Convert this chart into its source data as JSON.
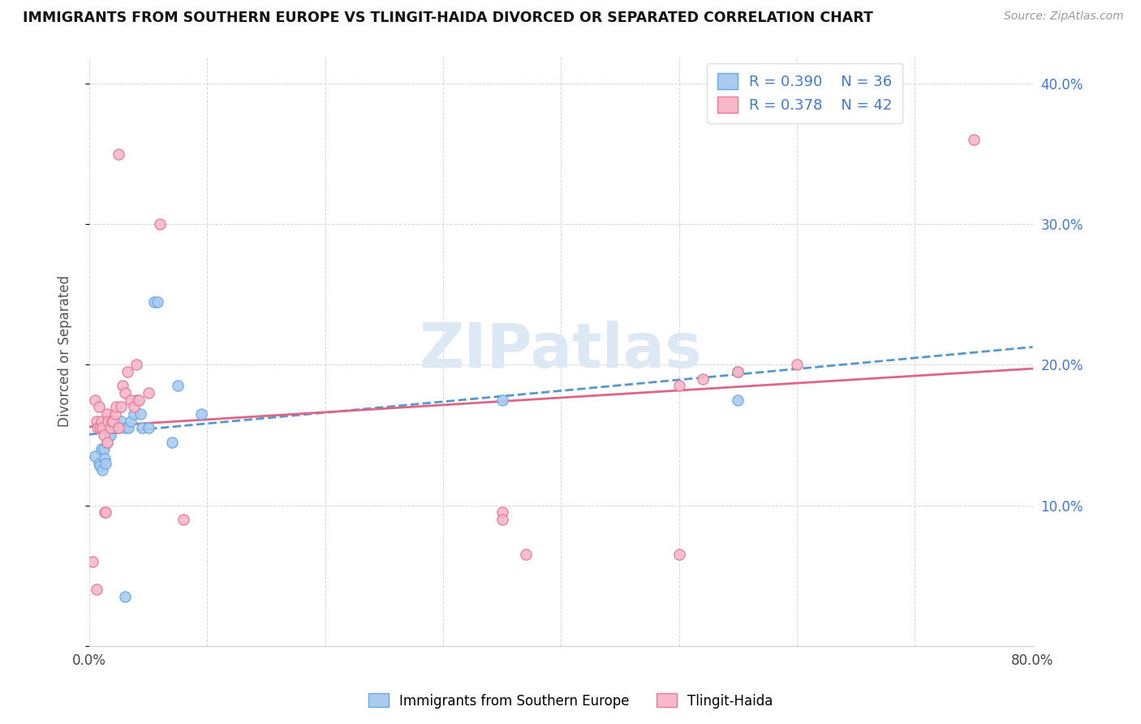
{
  "title": "IMMIGRANTS FROM SOUTHERN EUROPE VS TLINGIT-HAIDA DIVORCED OR SEPARATED CORRELATION CHART",
  "source": "Source: ZipAtlas.com",
  "ylabel": "Divorced or Separated",
  "xlim": [
    0.0,
    0.8
  ],
  "ylim": [
    0.0,
    0.42
  ],
  "xtick_positions": [
    0.0,
    0.1,
    0.2,
    0.3,
    0.4,
    0.5,
    0.6,
    0.7,
    0.8
  ],
  "xticklabels": [
    "0.0%",
    "",
    "",
    "",
    "",
    "",
    "",
    "",
    "80.0%"
  ],
  "ytick_positions": [
    0.0,
    0.1,
    0.2,
    0.3,
    0.4
  ],
  "yticklabels_right": [
    "",
    "10.0%",
    "20.0%",
    "30.0%",
    "40.0%"
  ],
  "blue_R": 0.39,
  "blue_N": 36,
  "pink_R": 0.378,
  "pink_N": 42,
  "blue_fill_color": "#aacbf0",
  "blue_edge_color": "#6aaae0",
  "pink_fill_color": "#f7b8ca",
  "pink_edge_color": "#e87899",
  "blue_line_color": "#5599cc",
  "pink_line_color": "#dd6688",
  "blue_scatter": [
    [
      0.005,
      0.135
    ],
    [
      0.008,
      0.13
    ],
    [
      0.009,
      0.128
    ],
    [
      0.01,
      0.14
    ],
    [
      0.01,
      0.155
    ],
    [
      0.011,
      0.125
    ],
    [
      0.012,
      0.14
    ],
    [
      0.013,
      0.133
    ],
    [
      0.014,
      0.13
    ],
    [
      0.015,
      0.145
    ],
    [
      0.016,
      0.155
    ],
    [
      0.017,
      0.15
    ],
    [
      0.018,
      0.15
    ],
    [
      0.019,
      0.155
    ],
    [
      0.02,
      0.155
    ],
    [
      0.022,
      0.16
    ],
    [
      0.023,
      0.155
    ],
    [
      0.025,
      0.155
    ],
    [
      0.027,
      0.16
    ],
    [
      0.03,
      0.155
    ],
    [
      0.033,
      0.155
    ],
    [
      0.035,
      0.16
    ],
    [
      0.038,
      0.165
    ],
    [
      0.04,
      0.175
    ],
    [
      0.043,
      0.165
    ],
    [
      0.045,
      0.155
    ],
    [
      0.05,
      0.155
    ],
    [
      0.055,
      0.245
    ],
    [
      0.058,
      0.245
    ],
    [
      0.075,
      0.185
    ],
    [
      0.095,
      0.165
    ],
    [
      0.35,
      0.175
    ],
    [
      0.55,
      0.175
    ],
    [
      0.55,
      0.195
    ],
    [
      0.03,
      0.035
    ],
    [
      0.07,
      0.145
    ]
  ],
  "pink_scatter": [
    [
      0.005,
      0.175
    ],
    [
      0.006,
      0.16
    ],
    [
      0.007,
      0.155
    ],
    [
      0.008,
      0.17
    ],
    [
      0.009,
      0.155
    ],
    [
      0.01,
      0.16
    ],
    [
      0.011,
      0.155
    ],
    [
      0.012,
      0.15
    ],
    [
      0.013,
      0.095
    ],
    [
      0.014,
      0.095
    ],
    [
      0.015,
      0.145
    ],
    [
      0.015,
      0.165
    ],
    [
      0.016,
      0.16
    ],
    [
      0.018,
      0.155
    ],
    [
      0.019,
      0.16
    ],
    [
      0.02,
      0.16
    ],
    [
      0.022,
      0.165
    ],
    [
      0.023,
      0.17
    ],
    [
      0.025,
      0.155
    ],
    [
      0.025,
      0.35
    ],
    [
      0.027,
      0.17
    ],
    [
      0.028,
      0.185
    ],
    [
      0.03,
      0.18
    ],
    [
      0.032,
      0.195
    ],
    [
      0.035,
      0.175
    ],
    [
      0.038,
      0.17
    ],
    [
      0.04,
      0.2
    ],
    [
      0.042,
      0.175
    ],
    [
      0.05,
      0.18
    ],
    [
      0.06,
      0.3
    ],
    [
      0.08,
      0.09
    ],
    [
      0.35,
      0.095
    ],
    [
      0.37,
      0.065
    ],
    [
      0.5,
      0.185
    ],
    [
      0.52,
      0.19
    ],
    [
      0.55,
      0.195
    ],
    [
      0.6,
      0.2
    ],
    [
      0.75,
      0.36
    ],
    [
      0.003,
      0.06
    ],
    [
      0.006,
      0.04
    ],
    [
      0.35,
      0.09
    ],
    [
      0.5,
      0.065
    ]
  ],
  "watermark": "ZIPatlas",
  "watermark_color": "#dde8f5",
  "legend_label_blue": "Immigrants from Southern Europe",
  "legend_label_pink": "Tlingit-Haida",
  "stat_color": "#4477cc"
}
